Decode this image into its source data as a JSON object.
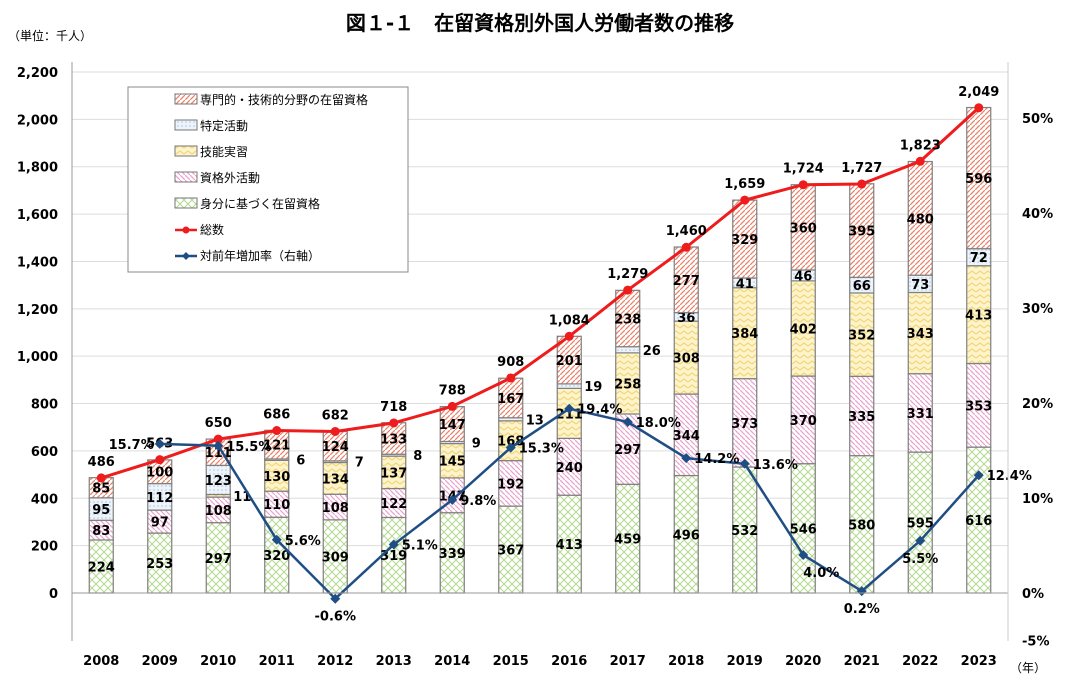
{
  "chart_data": {
    "type": "bar",
    "stacked": true,
    "title": "図１-１　在留資格別外国人労働者数の推移",
    "unit_label": "（単位：千人）",
    "xlabel_suffix": "（年）",
    "categories": [
      "2008",
      "2009",
      "2010",
      "2011",
      "2012",
      "2013",
      "2014",
      "2015",
      "2016",
      "2017",
      "2018",
      "2019",
      "2020",
      "2021",
      "2022",
      "2023"
    ],
    "ylim": [
      -200,
      2200
    ],
    "yticks": [
      0,
      200,
      400,
      600,
      800,
      1000,
      1200,
      1400,
      1600,
      1800,
      2000,
      2200
    ],
    "ytick_labels": [
      "0",
      "200",
      "400",
      "600",
      "800",
      "1,000",
      "1,200",
      "1,400",
      "1,600",
      "1,800",
      "2,000",
      "2,200"
    ],
    "y2lim": [
      -5,
      55
    ],
    "y2ticks": [
      -5,
      0,
      10,
      20,
      30,
      40,
      50
    ],
    "y2tick_labels": [
      "-5%",
      "0%",
      "10%",
      "20%",
      "30%",
      "40%",
      "50%"
    ],
    "grid": true,
    "legend_position": "top-left",
    "series": [
      {
        "name": "身分に基づく在留資格",
        "color": "#b5d88f",
        "pattern": "crosshatch",
        "values": [
          224,
          253,
          297,
          320,
          309,
          319,
          339,
          367,
          413,
          459,
          496,
          532,
          546,
          580,
          595,
          616
        ]
      },
      {
        "name": "資格外活動",
        "color": "#e9a3d0",
        "pattern": "diagonal",
        "values": [
          83,
          97,
          108,
          110,
          108,
          122,
          147,
          192,
          240,
          297,
          344,
          373,
          370,
          335,
          331,
          353
        ]
      },
      {
        "name": "技能実習",
        "color": "#f3d67a",
        "pattern": "zigzag",
        "values": [
          0,
          0,
          11,
          130,
          134,
          137,
          145,
          168,
          211,
          258,
          308,
          384,
          402,
          352,
          343,
          413
        ]
      },
      {
        "name": "特定活動",
        "color": "#a9c6e3",
        "pattern": "dots",
        "values": [
          95,
          112,
          123,
          6,
          7,
          8,
          9,
          13,
          19,
          26,
          36,
          41,
          46,
          66,
          73,
          72
        ]
      },
      {
        "name": "専門的・技術的分野の在留資格",
        "color": "#e8836b",
        "pattern": "diagonal",
        "values": [
          85,
          100,
          111,
          121,
          124,
          133,
          147,
          167,
          201,
          238,
          277,
          329,
          360,
          395,
          480,
          596
        ]
      }
    ],
    "total": {
      "name": "総数",
      "color": "#ee1c1c",
      "values": [
        486,
        563,
        650,
        686,
        682,
        718,
        788,
        908,
        1084,
        1279,
        1460,
        1659,
        1724,
        1727,
        1823,
        2049
      ],
      "labels": [
        "486",
        "563",
        "650",
        "686",
        "682",
        "718",
        "788",
        "908",
        "1,084",
        "1,279",
        "1,460",
        "1,659",
        "1,724",
        "1,727",
        "1,823",
        "2,049"
      ]
    },
    "growth": {
      "name": "対前年増加率（右軸）",
      "color": "#1f4e85",
      "axis": "right",
      "values": [
        null,
        15.7,
        15.5,
        5.6,
        -0.6,
        5.1,
        9.8,
        15.3,
        19.4,
        18.0,
        14.2,
        13.6,
        4.0,
        0.2,
        5.5,
        12.4
      ],
      "labels": [
        "",
        "15.7%",
        "15.5%",
        "5.6%",
        "-0.6%",
        "5.1%",
        "9.8%",
        "15.3%",
        "19.4%",
        "18.0%",
        "14.2%",
        "13.6%",
        "4.0%",
        "0.2%",
        "5.5%",
        "12.4%"
      ]
    }
  }
}
